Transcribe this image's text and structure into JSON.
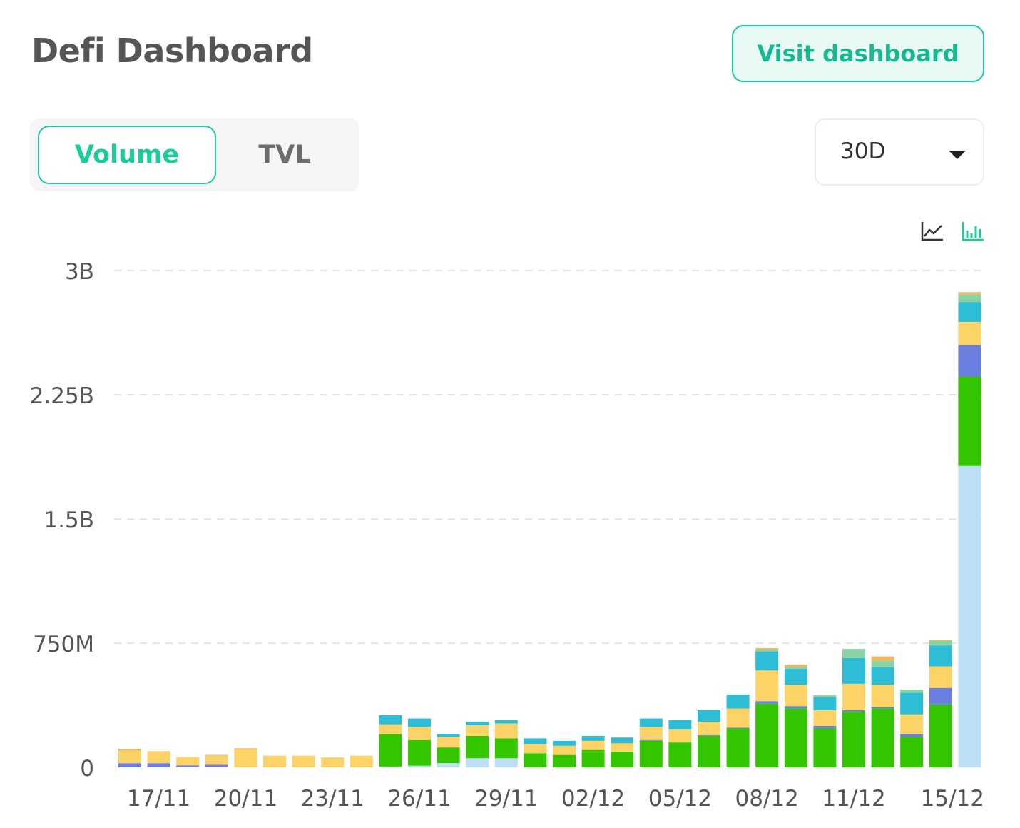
{
  "header": {
    "title": "Defi Dashboard",
    "visit_button_label": "Visit dashboard"
  },
  "tabs": [
    {
      "label": "Volume",
      "active": true
    },
    {
      "label": "TVL",
      "active": false
    }
  ],
  "period_select": {
    "value": "30D"
  },
  "view_toggle": [
    {
      "icon": "line-chart-icon",
      "active": false
    },
    {
      "icon": "bar-chart-icon",
      "active": true
    }
  ],
  "colors": {
    "accent": "#1ccd9c",
    "series": [
      "#bde0f7",
      "#33c500",
      "#6a7fe0",
      "#fcd366",
      "#2dbdd6",
      "#88d4a7",
      "#f0b860"
    ]
  },
  "chart_data": {
    "type": "bar",
    "stacked": true,
    "grid": true,
    "ylim": [
      0,
      3000000000
    ],
    "y_ticks": [
      {
        "value": 0,
        "label": "0"
      },
      {
        "value": 750000000,
        "label": "750M"
      },
      {
        "value": 1500000000,
        "label": "1.5B"
      },
      {
        "value": 2250000000,
        "label": "2.25B"
      },
      {
        "value": 3000000000,
        "label": "3B"
      }
    ],
    "categories": [
      "16/11",
      "17/11",
      "18/11",
      "19/11",
      "20/11",
      "21/11",
      "22/11",
      "23/11",
      "24/11",
      "25/11",
      "26/11",
      "27/11",
      "28/11",
      "29/11",
      "30/11",
      "01/12",
      "02/12",
      "03/12",
      "04/12",
      "05/12",
      "06/12",
      "07/12",
      "08/12",
      "09/12",
      "10/12",
      "11/12",
      "12/12",
      "13/12",
      "14/12",
      "15/12"
    ],
    "x_tick_labels": [
      "17/11",
      "20/11",
      "23/11",
      "26/11",
      "29/11",
      "02/12",
      "05/12",
      "08/12",
      "11/12",
      "15/12"
    ],
    "series": [
      {
        "values": [
          0,
          0,
          0,
          0,
          0,
          0,
          0,
          0,
          0,
          5000000,
          10000000,
          25000000,
          55000000,
          55000000,
          0,
          0,
          0,
          0,
          0,
          0,
          0,
          0,
          0,
          0,
          0,
          0,
          0,
          0,
          0,
          1820000000
        ]
      },
      {
        "values": [
          0,
          0,
          0,
          0,
          0,
          0,
          0,
          0,
          0,
          195000000,
          155000000,
          95000000,
          135000000,
          120000000,
          85000000,
          75000000,
          105000000,
          95000000,
          160000000,
          150000000,
          190000000,
          235000000,
          385000000,
          355000000,
          235000000,
          335000000,
          355000000,
          185000000,
          380000000,
          540000000
        ]
      },
      {
        "values": [
          25000000,
          25000000,
          12000000,
          15000000,
          0,
          0,
          0,
          0,
          0,
          0,
          0,
          0,
          0,
          0,
          0,
          0,
          0,
          0,
          5000000,
          0,
          5000000,
          5000000,
          15000000,
          15000000,
          15000000,
          10000000,
          10000000,
          15000000,
          100000000,
          190000000
        ]
      },
      {
        "values": [
          75000000,
          65000000,
          50000000,
          55000000,
          110000000,
          70000000,
          70000000,
          60000000,
          70000000,
          60000000,
          80000000,
          65000000,
          65000000,
          90000000,
          55000000,
          55000000,
          55000000,
          50000000,
          80000000,
          80000000,
          80000000,
          115000000,
          185000000,
          130000000,
          95000000,
          160000000,
          135000000,
          120000000,
          130000000,
          140000000
        ]
      },
      {
        "values": [
          0,
          0,
          0,
          0,
          0,
          0,
          0,
          0,
          0,
          55000000,
          50000000,
          15000000,
          20000000,
          20000000,
          35000000,
          30000000,
          30000000,
          35000000,
          50000000,
          55000000,
          70000000,
          85000000,
          115000000,
          95000000,
          80000000,
          155000000,
          105000000,
          130000000,
          125000000,
          120000000
        ]
      },
      {
        "values": [
          0,
          0,
          0,
          0,
          0,
          0,
          0,
          0,
          0,
          0,
          0,
          0,
          0,
          0,
          0,
          0,
          0,
          0,
          0,
          0,
          0,
          0,
          10000000,
          10000000,
          12000000,
          55000000,
          35000000,
          20000000,
          30000000,
          45000000
        ]
      },
      {
        "values": [
          12000000,
          7000000,
          0,
          5000000,
          5000000,
          0,
          0,
          0,
          0,
          0,
          0,
          0,
          0,
          0,
          0,
          0,
          0,
          0,
          0,
          0,
          0,
          0,
          10000000,
          15000000,
          0,
          0,
          30000000,
          0,
          5000000,
          15000000
        ]
      }
    ]
  }
}
